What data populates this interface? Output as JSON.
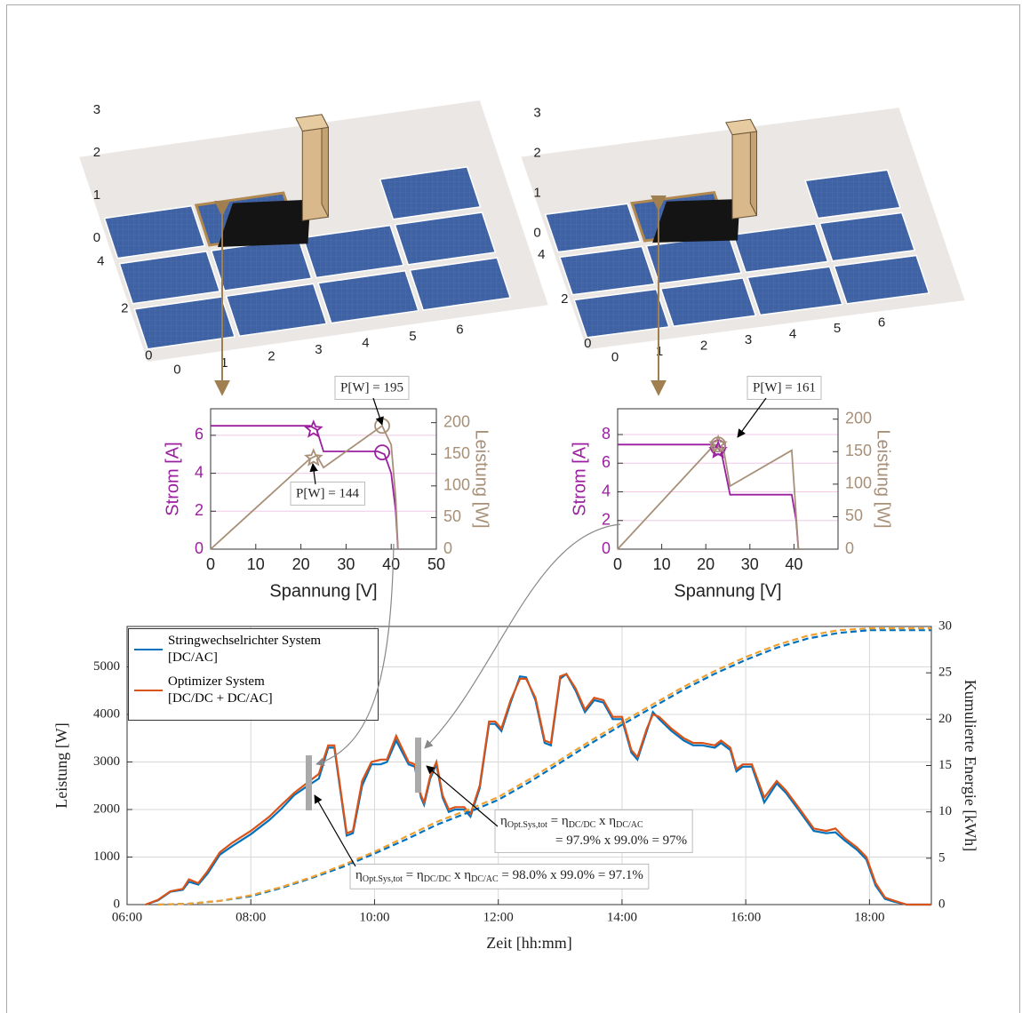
{
  "chart_data": [
    {
      "type": "scene3d",
      "xticks": [
        0,
        1,
        2,
        3,
        4,
        5,
        6
      ],
      "yticks": [
        0,
        2,
        4
      ],
      "zticks": [
        0,
        1,
        2,
        3
      ]
    },
    {
      "type": "scene3d",
      "xticks": [
        0,
        1,
        2,
        3,
        4,
        5,
        6
      ],
      "yticks": [
        0,
        2,
        4
      ],
      "zticks": [
        0,
        1,
        2,
        3
      ]
    },
    {
      "type": "line",
      "xlabel": "Spannung [V]",
      "ylabel": "Strom [A]",
      "y2label": "Leistung [W]",
      "ylabel_color": "#9b1fa0",
      "y2label_color": "#a89078",
      "grid": "y",
      "grid_color": "#f0c8e8",
      "xlim": [
        0,
        50
      ],
      "xticks": [
        0,
        10,
        20,
        30,
        40,
        50
      ],
      "ylim": [
        0,
        7.4
      ],
      "yticks": [
        0,
        2,
        4,
        6
      ],
      "y2lim": [
        0,
        222
      ],
      "y2ticks": [
        0,
        50,
        100,
        150,
        200
      ],
      "series": [
        {
          "color": "#9b1fa0",
          "x": [
            0,
            22,
            23.5,
            25,
            37,
            38.5,
            40,
            41,
            41.5
          ],
          "values": [
            6.5,
            6.5,
            6.3,
            5.15,
            5.15,
            5.0,
            4.0,
            2.0,
            0
          ]
        },
        {
          "color": "#a89078",
          "axis": "y2",
          "x": [
            0,
            22,
            23.5,
            25,
            38,
            40,
            41,
            41.5
          ],
          "values": [
            0,
            143,
            148,
            129,
            195,
            165,
            80,
            0
          ]
        },
        {
          "color": "#9b1fa0",
          "marker": "star",
          "x": [
            22.8
          ],
          "values": [
            6.3
          ]
        },
        {
          "color": "#a89078",
          "marker": "star",
          "axis": "y2",
          "x": [
            22.8
          ],
          "values": [
            144
          ]
        },
        {
          "color": "#9b1fa0",
          "marker": "circle",
          "x": [
            38
          ],
          "values": [
            5.1
          ]
        },
        {
          "color": "#a89078",
          "marker": "circle",
          "axis": "y2",
          "x": [
            38
          ],
          "values": [
            195
          ]
        }
      ],
      "annotations": [
        {
          "text": "P[W] = 195"
        },
        {
          "text": "P[W] = 144"
        }
      ]
    },
    {
      "type": "line",
      "xlabel": "Spannung [V]",
      "ylabel": "Strom [A]",
      "y2label": "Leistung [W]",
      "ylabel_color": "#9b1fa0",
      "y2label_color": "#a89078",
      "grid": "y",
      "grid_color": "#f0c8e8",
      "xlim": [
        0,
        50
      ],
      "xticks": [
        0,
        10,
        20,
        30,
        40
      ],
      "ylim": [
        0,
        9.8
      ],
      "yticks": [
        0,
        2,
        4,
        6,
        8
      ],
      "y2lim": [
        0,
        216
      ],
      "y2ticks": [
        0,
        50,
        100,
        150,
        200
      ],
      "series": [
        {
          "color": "#9b1fa0",
          "x": [
            0,
            22,
            23.5,
            25.5,
            39.5,
            40.5,
            41
          ],
          "values": [
            7.3,
            7.3,
            6.8,
            3.8,
            3.8,
            2,
            0
          ]
        },
        {
          "color": "#a89078",
          "axis": "y2",
          "x": [
            0,
            22,
            24,
            25.5,
            39.5,
            41
          ],
          "values": [
            0,
            161,
            155,
            97,
            152,
            0
          ]
        },
        {
          "color": "#9b1fa0",
          "marker": "star",
          "x": [
            22.8
          ],
          "values": [
            6.9
          ]
        },
        {
          "color": "#9b1fa0",
          "marker": "circle",
          "x": [
            22.8
          ],
          "values": [
            7.1
          ]
        },
        {
          "color": "#a89078",
          "marker": "star",
          "axis": "y2",
          "x": [
            22.8
          ],
          "values": [
            161
          ]
        },
        {
          "color": "#a89078",
          "marker": "circle",
          "axis": "y2",
          "x": [
            22.8
          ],
          "values": [
            161
          ]
        }
      ],
      "annotations": [
        {
          "text": "P[W] = 161"
        }
      ]
    },
    {
      "type": "line",
      "xlabel": "Zeit [hh:mm]",
      "ylabel": "Leistung [W]",
      "y2label": "Kumulierte Energie [kWh]",
      "grid": "both",
      "grid_color": "#d8d8d8",
      "legend": "upper left",
      "xlim": [
        6,
        19
      ],
      "xticks": [
        {
          "value": 6,
          "label": "06:00"
        },
        {
          "value": 8,
          "label": "08:00"
        },
        {
          "value": 10,
          "label": "10:00"
        },
        {
          "value": 12,
          "label": "12:00"
        },
        {
          "value": 14,
          "label": "14:00"
        },
        {
          "value": 16,
          "label": "16:00"
        },
        {
          "value": 18,
          "label": "18:00"
        }
      ],
      "ylim": [
        0,
        5850
      ],
      "yticks": [
        0,
        1000,
        2000,
        3000,
        4000,
        5000
      ],
      "y2lim": [
        0,
        30
      ],
      "y2ticks": [
        0,
        5,
        10,
        15,
        20,
        25,
        30
      ],
      "series": [
        {
          "name": "Stringwechselrichter System\n[DC/AC]",
          "color": "#0072bd",
          "x": [
            6.3,
            6.5,
            6.7,
            6.9,
            7.0,
            7.15,
            7.3,
            7.5,
            7.7,
            8.0,
            8.3,
            8.5,
            8.7,
            8.9,
            9.1,
            9.25,
            9.35,
            9.55,
            9.65,
            9.8,
            9.95,
            10.1,
            10.2,
            10.35,
            10.55,
            10.65,
            10.75,
            10.8,
            10.9,
            11.0,
            11.1,
            11.2,
            11.3,
            11.45,
            11.55,
            11.7,
            11.85,
            11.95,
            12.05,
            12.2,
            12.35,
            12.45,
            12.6,
            12.75,
            12.85,
            13.0,
            13.1,
            13.25,
            13.4,
            13.55,
            13.7,
            13.85,
            14.0,
            14.15,
            14.25,
            14.4,
            14.5,
            14.6,
            14.8,
            15.0,
            15.15,
            15.3,
            15.5,
            15.6,
            15.75,
            15.85,
            15.95,
            16.1,
            16.3,
            16.5,
            16.65,
            16.85,
            17.1,
            17.3,
            17.45,
            17.6,
            17.8,
            17.95,
            18.1,
            18.25,
            18.4,
            18.6,
            19.0
          ],
          "values": [
            0,
            90,
            270,
            310,
            480,
            420,
            650,
            1050,
            1230,
            1480,
            1780,
            2020,
            2300,
            2480,
            2650,
            3300,
            3300,
            1450,
            1500,
            2500,
            2950,
            2950,
            3000,
            3450,
            2950,
            2900,
            2250,
            2100,
            2650,
            2950,
            2250,
            1950,
            2000,
            2000,
            1850,
            2450,
            3800,
            3800,
            3650,
            4250,
            4800,
            4780,
            4300,
            3400,
            3350,
            4750,
            4850,
            4500,
            4050,
            4300,
            4250,
            3900,
            3900,
            3200,
            3050,
            3650,
            4050,
            3900,
            3650,
            3450,
            3350,
            3350,
            3300,
            3400,
            3250,
            2800,
            2900,
            2900,
            2150,
            2550,
            2350,
            2000,
            1550,
            1500,
            1520,
            1350,
            1150,
            950,
            400,
            120,
            60,
            0,
            0
          ]
        },
        {
          "name": "Optimizer System\n[DC/DC + DC/AC]",
          "color": "#d95319",
          "x": [
            6.3,
            6.5,
            6.7,
            6.9,
            7.0,
            7.15,
            7.3,
            7.5,
            7.7,
            8.0,
            8.3,
            8.5,
            8.7,
            8.9,
            9.1,
            9.25,
            9.35,
            9.55,
            9.65,
            9.8,
            9.95,
            10.1,
            10.2,
            10.35,
            10.55,
            10.65,
            10.75,
            10.8,
            10.9,
            11.0,
            11.1,
            11.2,
            11.3,
            11.45,
            11.55,
            11.7,
            11.85,
            11.95,
            12.05,
            12.2,
            12.35,
            12.45,
            12.6,
            12.75,
            12.85,
            13.0,
            13.1,
            13.25,
            13.4,
            13.55,
            13.7,
            13.85,
            14.0,
            14.15,
            14.25,
            14.4,
            14.5,
            14.6,
            14.8,
            15.0,
            15.15,
            15.3,
            15.5,
            15.6,
            15.75,
            15.85,
            15.95,
            16.1,
            16.3,
            16.5,
            16.65,
            16.85,
            17.1,
            17.3,
            17.45,
            17.6,
            17.8,
            17.95,
            18.1,
            18.25,
            18.4,
            18.6,
            19.0
          ],
          "values": [
            0,
            100,
            280,
            330,
            530,
            450,
            700,
            1100,
            1300,
            1550,
            1850,
            2100,
            2350,
            2550,
            2750,
            3350,
            3350,
            1500,
            1550,
            2600,
            3000,
            3050,
            3050,
            3550,
            3000,
            2950,
            2300,
            2150,
            2700,
            3000,
            2300,
            2000,
            2050,
            2050,
            1900,
            2500,
            3850,
            3850,
            3700,
            4300,
            4750,
            4750,
            4350,
            3450,
            3400,
            4800,
            4850,
            4550,
            4100,
            4350,
            4300,
            3950,
            3950,
            3250,
            3100,
            3700,
            4000,
            3950,
            3700,
            3500,
            3400,
            3400,
            3350,
            3450,
            3300,
            2850,
            2950,
            2950,
            2250,
            2600,
            2400,
            2050,
            1600,
            1550,
            1600,
            1400,
            1200,
            1000,
            450,
            150,
            80,
            0,
            0
          ]
        },
        {
          "color": "#0072bd",
          "axis": "y2",
          "dash": true,
          "x": [
            6.5,
            7,
            7.5,
            8,
            8.5,
            9,
            9.5,
            10,
            10.5,
            11,
            11.5,
            12,
            12.5,
            13,
            13.5,
            14,
            14.5,
            15,
            15.5,
            16,
            16.5,
            17,
            17.5,
            18,
            18.5,
            19
          ],
          "values": [
            0,
            0.1,
            0.4,
            0.9,
            1.8,
            2.9,
            4.1,
            5.5,
            7.0,
            8.6,
            9.9,
            11.3,
            13.2,
            15.3,
            17.4,
            19.4,
            21.3,
            23.2,
            24.9,
            26.4,
            27.7,
            28.7,
            29.3,
            29.6,
            29.6,
            29.6
          ]
        },
        {
          "color": "#f0a030",
          "axis": "y2",
          "dash": true,
          "x": [
            6.5,
            7,
            7.5,
            8,
            8.5,
            9,
            9.5,
            10,
            10.5,
            11,
            11.5,
            12,
            12.5,
            13,
            13.5,
            14,
            14.5,
            15,
            15.5,
            16,
            16.5,
            17,
            17.5,
            18,
            18.5,
            19
          ],
          "values": [
            0,
            0.1,
            0.4,
            1.0,
            1.9,
            3.0,
            4.3,
            5.7,
            7.3,
            8.9,
            10.2,
            11.6,
            13.5,
            15.6,
            17.7,
            19.7,
            21.6,
            23.5,
            25.2,
            26.7,
            28.0,
            29.0,
            29.6,
            29.8,
            29.8,
            29.8
          ]
        }
      ],
      "annotations": [
        {
          "lines": [
            [
              "η",
              "Opt.Sys,tot",
              " = η",
              "DC/DC",
              " x η",
              "DC/AC"
            ],
            [
              "= 97.9% x 99.0% = 97%"
            ]
          ]
        },
        {
          "lines": [
            [
              "η",
              "Opt.Sys,tot",
              " = η",
              "DC/DC",
              " x η",
              "DC/AC",
              " = 98.0% x 99.0% = 97.1%"
            ]
          ]
        }
      ]
    }
  ]
}
